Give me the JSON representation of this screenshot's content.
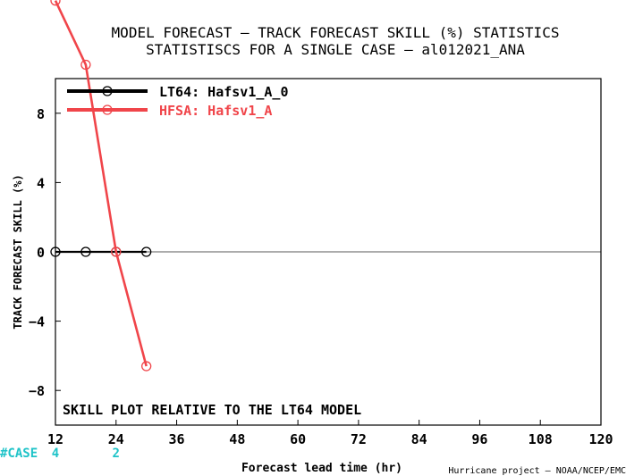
{
  "title": {
    "line1": "MODEL FORECAST – TRACK FORECAST SKILL (%) STATISTICS",
    "line2": "STATISTISCS FOR A SINGLE CASE – al012021_ANA"
  },
  "annotation": "SKILL PLOT RELATIVE TO THE LT64 MODEL",
  "case_row": {
    "label": "#CASE",
    "counts": [
      {
        "x": 12,
        "count": "4"
      },
      {
        "x": 24,
        "count": "2"
      }
    ]
  },
  "credit": "Hurricane project – NOAA/NCEP/EMC",
  "colors": {
    "lt64": "#000000",
    "hfsa": "#f0454a",
    "case": "#1fc3c8",
    "zero_line": "#7a7a7a"
  },
  "chart_data": {
    "type": "line",
    "xlabel": "Forecast lead time (hr)",
    "ylabel": "TRACK FORECAST SKILL (%)",
    "xlim": [
      12,
      120
    ],
    "ylim": [
      -10,
      10
    ],
    "xticks": [
      12,
      24,
      36,
      48,
      60,
      72,
      84,
      96,
      108,
      120
    ],
    "yticks": [
      -8,
      -4,
      0,
      4,
      8
    ],
    "legend_position": "top-left",
    "series": [
      {
        "name": "LT64: Hafsv1_A_0",
        "color": "#000000",
        "x": [
          12,
          18,
          24,
          30
        ],
        "y": [
          0,
          0,
          0,
          0
        ]
      },
      {
        "name": "HFSA: Hafsv1_A",
        "color": "#f0454a",
        "x": [
          12,
          18,
          24,
          30
        ],
        "y": [
          14.5,
          10.8,
          0,
          -6.6
        ]
      }
    ]
  }
}
